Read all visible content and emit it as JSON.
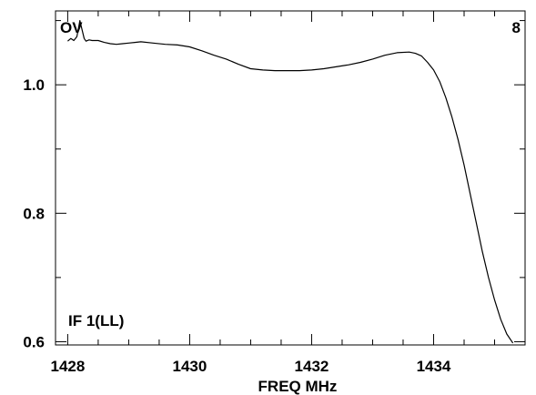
{
  "chart_data": {
    "type": "line",
    "title": "",
    "xlabel": "FREQ MHz",
    "ylabel": "",
    "xlim": [
      1427.8,
      1435.5
    ],
    "ylim": [
      0.595,
      1.115
    ],
    "x_ticks": [
      1428,
      1430,
      1432,
      1434
    ],
    "x_tick_labels": [
      "1428",
      "1430",
      "1432",
      "1434"
    ],
    "y_ticks": [
      0.6,
      0.8,
      1.0
    ],
    "y_tick_labels": [
      "0.6",
      "0.8",
      "1.0"
    ],
    "x_minor_step": 0.5,
    "y_minor_step": 0.1,
    "grid": false,
    "annotations": {
      "top_left": "OV",
      "top_right": "8",
      "bottom_left": "IF 1(LL)"
    },
    "series": [
      {
        "x": [
          1428.0,
          1428.05,
          1428.1,
          1428.15,
          1428.18,
          1428.2,
          1428.23,
          1428.27,
          1428.3,
          1428.35,
          1428.4,
          1428.5,
          1428.6,
          1428.7,
          1428.8,
          1428.9,
          1429.0,
          1429.1,
          1429.2,
          1429.4,
          1429.6,
          1429.8,
          1430.0,
          1430.2,
          1430.4,
          1430.6,
          1430.8,
          1431.0,
          1431.2,
          1431.4,
          1431.6,
          1431.8,
          1432.0,
          1432.2,
          1432.4,
          1432.6,
          1432.8,
          1433.0,
          1433.2,
          1433.4,
          1433.6,
          1433.7,
          1433.8,
          1433.9,
          1434.0,
          1434.1,
          1434.2,
          1434.3,
          1434.4,
          1434.5,
          1434.6,
          1434.7,
          1434.8,
          1434.9,
          1435.0,
          1435.1,
          1435.2,
          1435.3
        ],
        "y": [
          1.068,
          1.072,
          1.069,
          1.075,
          1.09,
          1.1,
          1.088,
          1.072,
          1.068,
          1.07,
          1.069,
          1.069,
          1.066,
          1.064,
          1.063,
          1.064,
          1.065,
          1.066,
          1.067,
          1.065,
          1.063,
          1.062,
          1.059,
          1.053,
          1.046,
          1.04,
          1.032,
          1.025,
          1.023,
          1.022,
          1.022,
          1.022,
          1.023,
          1.025,
          1.028,
          1.031,
          1.035,
          1.04,
          1.046,
          1.05,
          1.051,
          1.049,
          1.045,
          1.035,
          1.023,
          1.005,
          0.98,
          0.95,
          0.915,
          0.875,
          0.83,
          0.785,
          0.74,
          0.7,
          0.665,
          0.635,
          0.612,
          0.598
        ]
      }
    ]
  }
}
